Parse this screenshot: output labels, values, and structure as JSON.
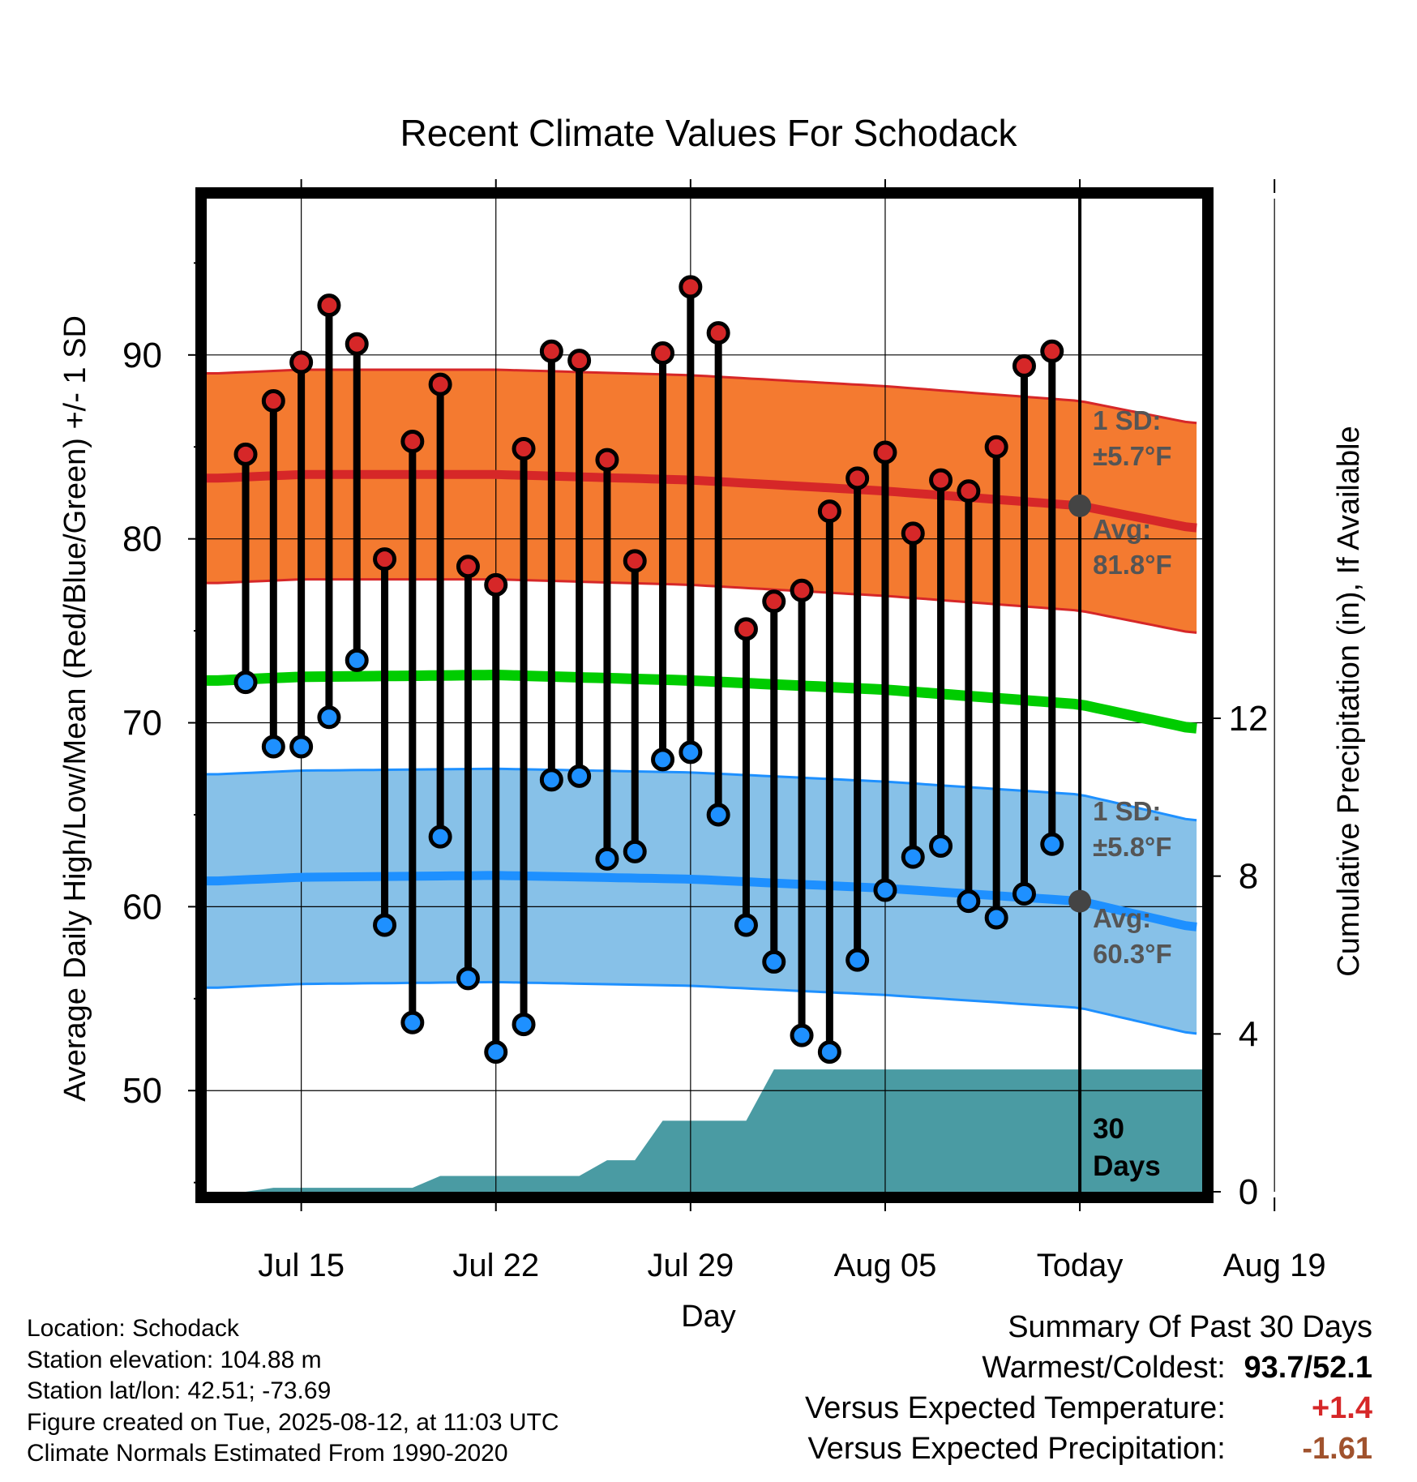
{
  "chart_data": {
    "type": "line",
    "title": "Recent Climate Values For Schodack",
    "xlabel": "Day",
    "ylabel": "Average Daily High/Low/Mean (Red/Blue/Green) +/- 1 SD",
    "y2label": "Cumulative Precipitation (in), If Available",
    "x_tick_labels": [
      "Jul 15",
      "Jul 22",
      "Jul 29",
      "Aug 05",
      "Today",
      "Aug 19"
    ],
    "y_ticks": [
      50,
      60,
      70,
      80,
      90
    ],
    "y2_ticks": [
      0,
      4,
      8,
      12
    ],
    "ylim": [
      44.5,
      98.5
    ],
    "y2lim": [
      0,
      12
    ],
    "grid": true,
    "series": [
      {
        "name": "High",
        "values": [
          84.6,
          87.5,
          89.6,
          92.7,
          90.6,
          78.9,
          85.3,
          88.4,
          78.5,
          77.5,
          84.9,
          90.2,
          89.7,
          84.3,
          78.8,
          90.1,
          93.7,
          91.2,
          75.1,
          76.6,
          77.2,
          81.5,
          83.3,
          84.7,
          80.3,
          83.2,
          82.6,
          85.0,
          89.4,
          90.2
        ]
      },
      {
        "name": "Low",
        "values": [
          72.2,
          68.7,
          68.7,
          70.3,
          73.4,
          59.0,
          53.7,
          63.8,
          56.1,
          52.1,
          53.6,
          66.9,
          67.1,
          62.6,
          63.0,
          68.0,
          68.4,
          65.0,
          59.0,
          57.0,
          53.0,
          52.1,
          57.1,
          60.9,
          62.7,
          63.3,
          60.3,
          59.4,
          60.7,
          63.4
        ]
      }
    ],
    "normal_high": {
      "x": [
        -3,
        0,
        7,
        14,
        21,
        28,
        32
      ],
      "values": [
        83.3,
        83.5,
        83.5,
        83.2,
        82.6,
        81.8,
        80.6
      ]
    },
    "normal_low": {
      "x": [
        -3,
        0,
        7,
        14,
        21,
        28,
        32
      ],
      "values": [
        61.4,
        61.6,
        61.7,
        61.5,
        61.0,
        60.3,
        58.9
      ]
    },
    "normal_mean": {
      "x": [
        -3,
        0,
        7,
        14,
        21,
        28,
        32
      ],
      "values": [
        72.3,
        72.5,
        72.6,
        72.3,
        71.8,
        71.0,
        69.7
      ]
    },
    "high_sd": 5.7,
    "low_sd": 5.8,
    "precip": {
      "x": [
        -3,
        -2,
        -1,
        0,
        1,
        2,
        3,
        4,
        5,
        6,
        7,
        8,
        9,
        10,
        11,
        12,
        13,
        14,
        15,
        16,
        17,
        18,
        19,
        20,
        21,
        22,
        23,
        24,
        25,
        26,
        27,
        28,
        29,
        30,
        31,
        32
      ],
      "values": [
        0,
        0,
        0.1,
        0.1,
        0.1,
        0.1,
        0.1,
        0.1,
        0.4,
        0.4,
        0.4,
        0.4,
        0.4,
        0.4,
        0.8,
        0.8,
        1.8,
        1.8,
        1.8,
        1.8,
        3.1,
        3.1,
        3.1,
        3.1,
        3.1,
        3.1,
        3.1,
        3.1,
        3.1,
        3.1,
        3.1,
        3.1,
        3.1,
        3.1,
        3.1,
        3.1
      ]
    },
    "annotations": {
      "high_sd_label": "1 SD:",
      "high_sd_value": "±5.7°F",
      "high_avg_label": "Avg:",
      "high_avg_value": "81.8°F",
      "low_sd_label": "1 SD:",
      "low_sd_value": "±5.8°F",
      "low_avg_label": "Avg:",
      "low_avg_value": "60.3°F",
      "days_line1": "30",
      "days_line2": "Days"
    },
    "colors": {
      "high_band": "#f47a30",
      "high_line": "#d62728",
      "low_band": "#87c1e8",
      "low_line": "#1e90ff",
      "mean_line": "#00cc00",
      "precip_fill": "#4a9ba3",
      "high_dot": "#d62728",
      "low_dot": "#1e90ff",
      "marker": "#444444",
      "annotation_text": "#555555"
    }
  },
  "info": {
    "location": "Location: Schodack",
    "elevation": "Station elevation: 104.88 m",
    "latlon": "Station lat/lon: 42.51; -73.69",
    "created": "Figure created on Tue, 2025-08-12, at 11:03 UTC",
    "normals": "Climate Normals Estimated From 1990-2020"
  },
  "summary": {
    "title": "Summary Of Past 30 Days",
    "warmest_label": "Warmest/Coldest:",
    "warmest_value": "93.7/52.1",
    "temp_label": "Versus Expected Temperature:",
    "temp_value": "+1.4",
    "precip_label": "Versus Expected Precipitation:",
    "precip_value": "-1.61"
  }
}
